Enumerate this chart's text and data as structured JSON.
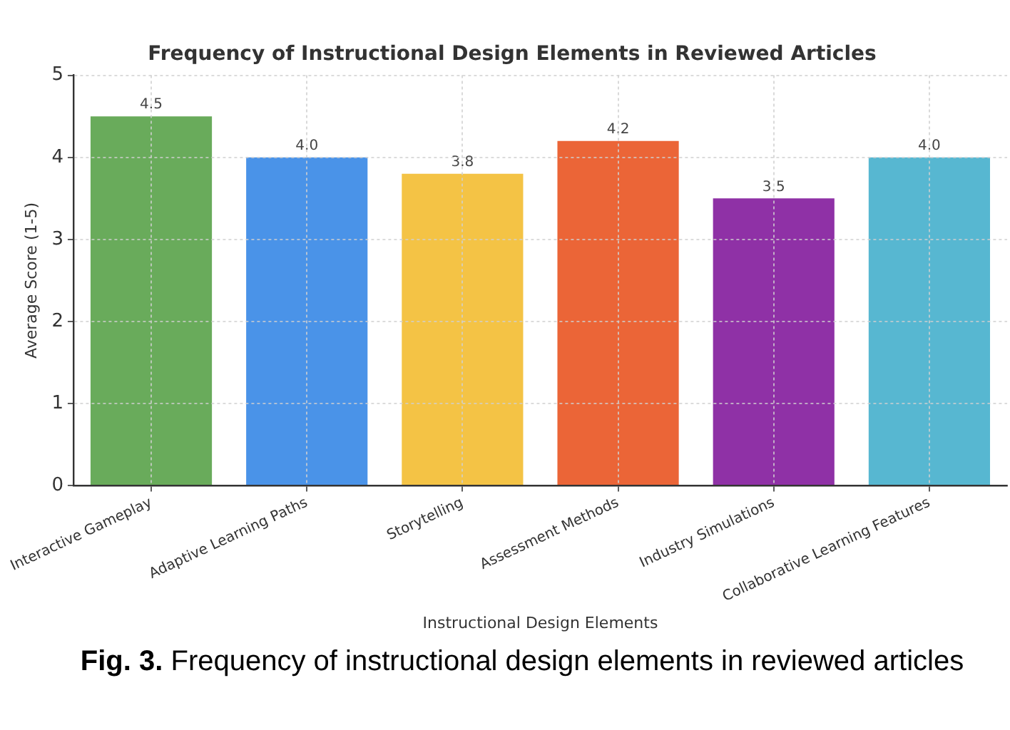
{
  "chart_data": {
    "type": "bar",
    "title": "Frequency of Instructional Design Elements in Reviewed Articles",
    "xlabel": "Instructional Design Elements",
    "ylabel": "Average Score (1-5)",
    "annotations": [
      "Fig. 3. Frequency of instructional design elements in reviewed articles"
    ],
    "categories": [
      "Interactive Gameplay",
      "Adaptive Learning Paths",
      "Storytelling",
      "Assessment Methods",
      "Industry Simulations",
      "Collaborative Learning Features"
    ],
    "values": [
      4.5,
      4.0,
      3.8,
      4.2,
      3.5,
      4.0
    ],
    "colors": [
      "#69ab5b",
      "#4a93e8",
      "#f4c345",
      "#eb6537",
      "#8f31a6",
      "#57b7d1"
    ],
    "value_labels": [
      "4.5",
      "4.0",
      "3.8",
      "4.2",
      "3.5",
      "4.0"
    ],
    "ylim": [
      0,
      5
    ],
    "yticks": [
      0,
      1,
      2,
      3,
      4,
      5
    ],
    "grid": true
  }
}
